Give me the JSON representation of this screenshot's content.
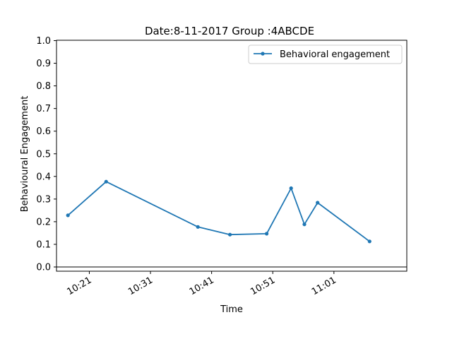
{
  "chart_data": {
    "type": "line",
    "title": "Date:8-11-2017 Group :4ABCDE",
    "xlabel": "Time",
    "ylabel": "Behavioural Engagement",
    "ylim": [
      0.0,
      1.0
    ],
    "xlim": [
      "10:15:38",
      "11:12:55"
    ],
    "yticks": [
      "0.0",
      "0.1",
      "0.2",
      "0.3",
      "0.4",
      "0.5",
      "0.6",
      "0.7",
      "0.8",
      "0.9",
      "1.0"
    ],
    "xticks": [
      "10:21",
      "10:31",
      "10:41",
      "10:51",
      "11:01"
    ],
    "grid": false,
    "legend_position": "top-right",
    "series": [
      {
        "name": "Behavioral engagement",
        "color": "#1f77b4",
        "marker": "dot",
        "x": [
          "10:17:30",
          "10:23:45",
          "10:38:45",
          "10:44:00",
          "10:50:00",
          "10:54:00",
          "10:56:10",
          "10:58:20",
          "11:06:50"
        ],
        "y": [
          0.228,
          0.377,
          0.177,
          0.143,
          0.147,
          0.348,
          0.188,
          0.284,
          0.113
        ]
      }
    ]
  }
}
